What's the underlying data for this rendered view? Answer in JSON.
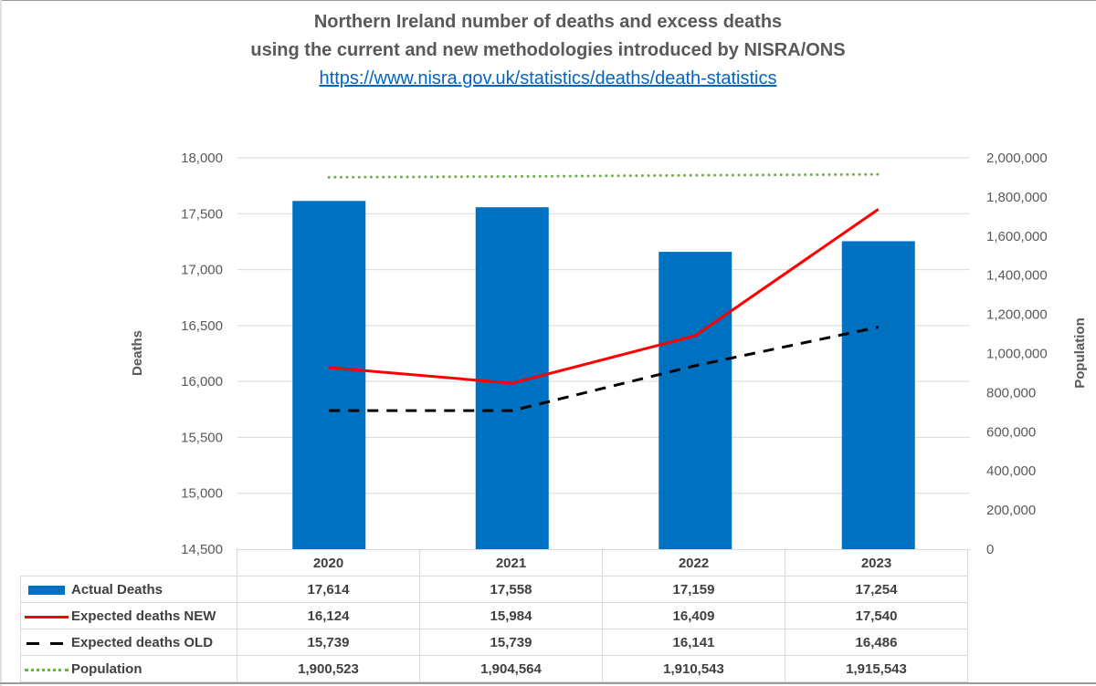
{
  "chart_data": {
    "type": "bar+line",
    "title": "Northern Ireland number of deaths and excess deaths",
    "subtitle": "using the current and new methodologies introduced by NISRA/ONS",
    "source_link": "https://www.nisra.gov.uk/statistics/deaths/death-statistics",
    "categories": [
      "2020",
      "2021",
      "2022",
      "2023"
    ],
    "ylabel": "Deaths",
    "y2label": "Population",
    "ylim": [
      14500,
      18000
    ],
    "y2lim": [
      0,
      2000000
    ],
    "yticks": [
      "14,500",
      "15,000",
      "15,500",
      "16,000",
      "16,500",
      "17,000",
      "17,500",
      "18,000"
    ],
    "y2ticks": [
      "0",
      "200,000",
      "400,000",
      "600,000",
      "800,000",
      "1,000,000",
      "1,200,000",
      "1,400,000",
      "1,600,000",
      "1,800,000",
      "2,000,000"
    ],
    "grid": true,
    "legend": "data-table",
    "series": [
      {
        "name": "Actual Deaths",
        "kind": "bar",
        "axis": "left",
        "color": "#0070c0",
        "values": [
          17614,
          17558,
          17159,
          17254
        ],
        "labels": [
          "17,614",
          "17,558",
          "17,159",
          "17,254"
        ]
      },
      {
        "name": "Expected deaths NEW",
        "kind": "line",
        "axis": "left",
        "color": "#ff0000",
        "style": "solid",
        "values": [
          16124,
          15984,
          16409,
          17540
        ],
        "labels": [
          "16,124",
          "15,984",
          "16,409",
          "17,540"
        ]
      },
      {
        "name": "Expected deaths OLD",
        "kind": "line",
        "axis": "left",
        "color": "#000000",
        "style": "dashed",
        "values": [
          15739,
          15739,
          16141,
          16486
        ],
        "labels": [
          "15,739",
          "15,739",
          "16,141",
          "16,486"
        ]
      },
      {
        "name": "Population",
        "kind": "line",
        "axis": "right",
        "color": "#70ad47",
        "style": "dotted",
        "values": [
          1900523,
          1904564,
          1910543,
          1915543
        ],
        "labels": [
          "1,900,523",
          "1,904,564",
          "1,910,543",
          "1,915,543"
        ]
      }
    ]
  }
}
